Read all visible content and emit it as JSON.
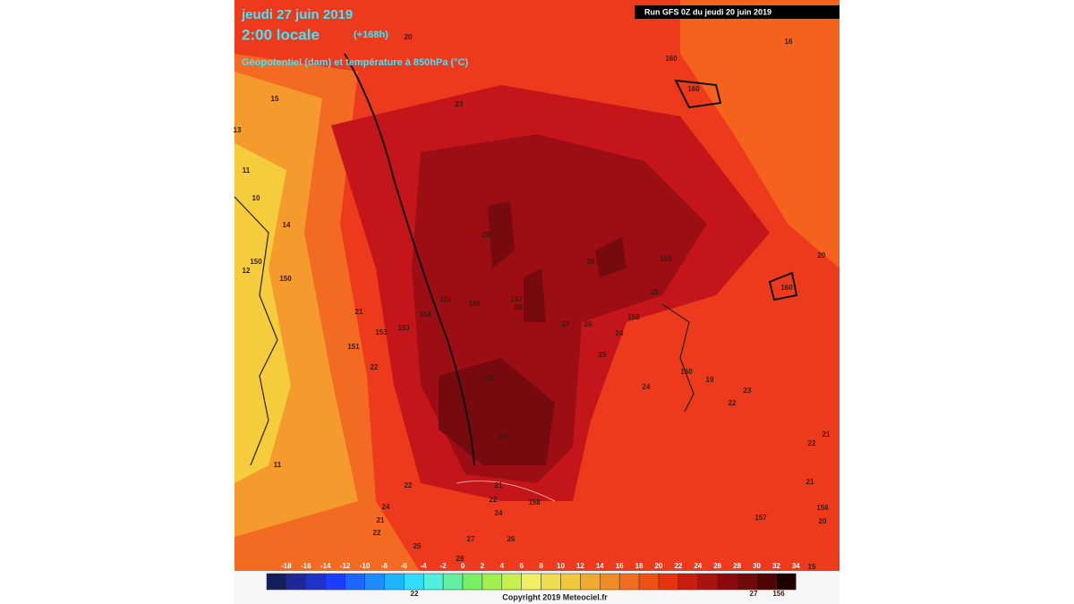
{
  "header": {
    "date": "jeudi 27 juin 2019",
    "time": "2:00 locale",
    "lead": "(+168h)",
    "field": "Géopotentiel (dam) et température à 850hPa (°C)",
    "run": "Run GFS 0Z du jeudi 20 juin 2019"
  },
  "legend": {
    "ticks": [
      -18,
      -16,
      -14,
      -12,
      -10,
      -8,
      -6,
      -4,
      -2,
      0,
      2,
      4,
      6,
      8,
      10,
      12,
      14,
      16,
      18,
      20,
      22,
      24,
      26,
      28,
      30,
      32,
      34
    ],
    "colors": [
      "#141e5a",
      "#1e2896",
      "#1e32c8",
      "#1e3cff",
      "#1e64ff",
      "#1e8cff",
      "#1eb4ff",
      "#32dcff",
      "#50f0dc",
      "#64f0a0",
      "#78f064",
      "#a0f050",
      "#c8f050",
      "#f0f064",
      "#f0dc50",
      "#f0c83c",
      "#f0aa32",
      "#f08c28",
      "#f06e1e",
      "#f05014",
      "#e6320f",
      "#c81e0f",
      "#aa140f",
      "#8c0a0f",
      "#6e0a0a",
      "#500505",
      "#1e0000"
    ]
  },
  "copyright": "Copyright 2019 Meteociel.fr",
  "map_labels": [
    "20",
    "16",
    "160",
    "160",
    "23",
    "15",
    "13",
    "11",
    "10",
    "14",
    "28",
    "28",
    "159",
    "150",
    "12",
    "150",
    "155",
    "156",
    "157",
    "28",
    "154",
    "21",
    "153",
    "153",
    "151",
    "27",
    "26",
    "158",
    "24",
    "28",
    "160",
    "20",
    "22",
    "28",
    "25",
    "24",
    "160",
    "19",
    "23",
    "22",
    "29",
    "11",
    "22",
    "21",
    "22",
    "158",
    "24",
    "24",
    "21",
    "22",
    "25",
    "27",
    "26",
    "28",
    "157",
    "156",
    "22",
    "21",
    "21",
    "20",
    "15",
    "22",
    "156",
    "27"
  ]
}
